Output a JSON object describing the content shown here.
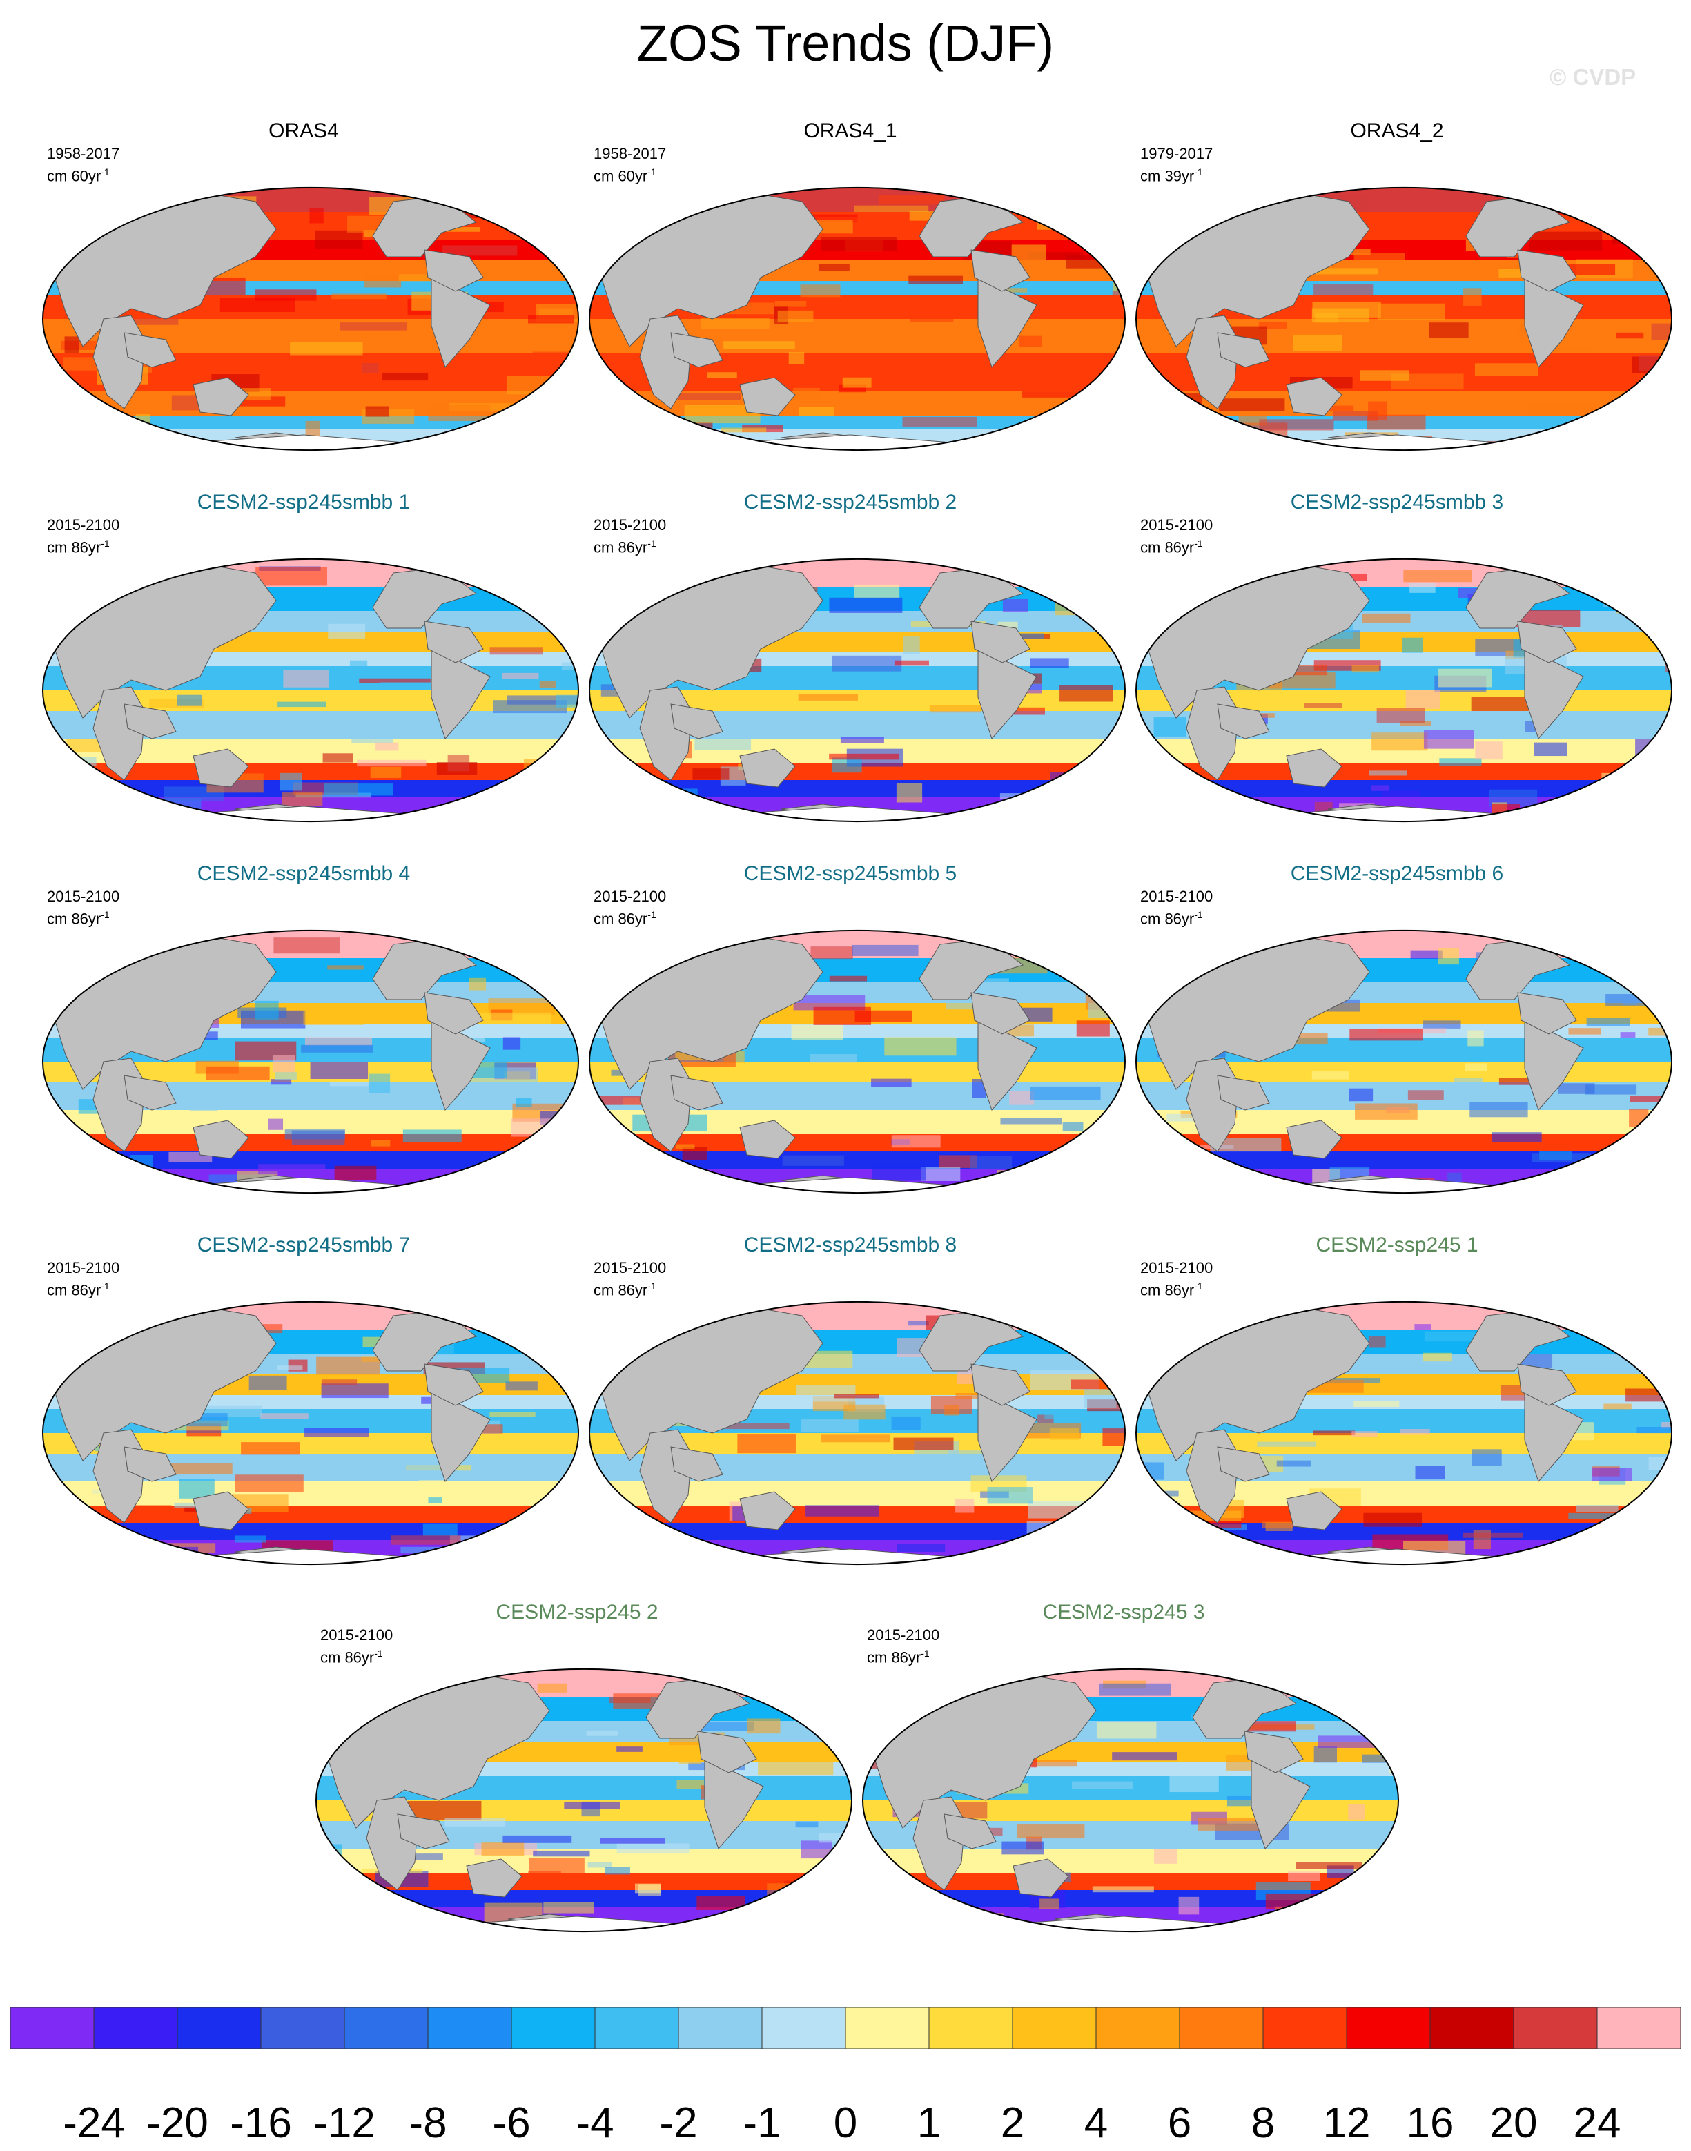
{
  "title": "ZOS Trends (DJF)",
  "watermark": "© CVDP",
  "colors": {
    "land": "#c0c0c0",
    "obs_title": "#000000",
    "smbb_title": "#126e86",
    "ssp245_title": "#5a8a5a"
  },
  "colorbar": {
    "colors": [
      "#7f2bf5",
      "#3a1df5",
      "#1a2ef0",
      "#3b5ee0",
      "#2c6fe8",
      "#1e8cf5",
      "#0fb3f5",
      "#3fbef2",
      "#8ecff0",
      "#b9e1f5",
      "#fff59a",
      "#ffdc3c",
      "#ffc01a",
      "#ffa012",
      "#ff7a0f",
      "#ff3c08",
      "#f50000",
      "#c80000",
      "#d63a3a",
      "#ffb3bb"
    ],
    "labels": [
      "-24",
      "-20",
      "-16",
      "-12",
      "-8",
      "-6",
      "-4",
      "-2",
      "-1",
      "0",
      "1",
      "2",
      "4",
      "6",
      "8",
      "12",
      "16",
      "20",
      "24"
    ]
  },
  "panels": [
    {
      "title": "ORAS4",
      "style": "obs",
      "period": "1958-2017",
      "units": "cm 60yr",
      "units_exp": "-1"
    },
    {
      "title": "ORAS4_1",
      "style": "obs",
      "period": "1958-2017",
      "units": "cm 60yr",
      "units_exp": "-1"
    },
    {
      "title": "ORAS4_2",
      "style": "obs",
      "period": "1979-2017",
      "units": "cm 39yr",
      "units_exp": "-1"
    },
    {
      "title": "CESM2-ssp245smbb 1",
      "style": "smbb",
      "period": "2015-2100",
      "units": "cm 86yr",
      "units_exp": "-1"
    },
    {
      "title": "CESM2-ssp245smbb 2",
      "style": "smbb",
      "period": "2015-2100",
      "units": "cm 86yr",
      "units_exp": "-1"
    },
    {
      "title": "CESM2-ssp245smbb 3",
      "style": "smbb",
      "period": "2015-2100",
      "units": "cm 86yr",
      "units_exp": "-1"
    },
    {
      "title": "CESM2-ssp245smbb 4",
      "style": "smbb",
      "period": "2015-2100",
      "units": "cm 86yr",
      "units_exp": "-1"
    },
    {
      "title": "CESM2-ssp245smbb 5",
      "style": "smbb",
      "period": "2015-2100",
      "units": "cm 86yr",
      "units_exp": "-1"
    },
    {
      "title": "CESM2-ssp245smbb 6",
      "style": "smbb",
      "period": "2015-2100",
      "units": "cm 86yr",
      "units_exp": "-1"
    },
    {
      "title": "CESM2-ssp245smbb 7",
      "style": "smbb",
      "period": "2015-2100",
      "units": "cm 86yr",
      "units_exp": "-1"
    },
    {
      "title": "CESM2-ssp245smbb 8",
      "style": "smbb",
      "period": "2015-2100",
      "units": "cm 86yr",
      "units_exp": "-1"
    },
    {
      "title": "CESM2-ssp245 1",
      "style": "ssp245",
      "period": "2015-2100",
      "units": "cm 86yr",
      "units_exp": "-1"
    },
    {
      "title": "CESM2-ssp245 2",
      "style": "ssp245",
      "period": "2015-2100",
      "units": "cm 86yr",
      "units_exp": "-1"
    },
    {
      "title": "CESM2-ssp245 3",
      "style": "ssp245",
      "period": "2015-2100",
      "units": "cm 86yr",
      "units_exp": "-1"
    }
  ]
}
